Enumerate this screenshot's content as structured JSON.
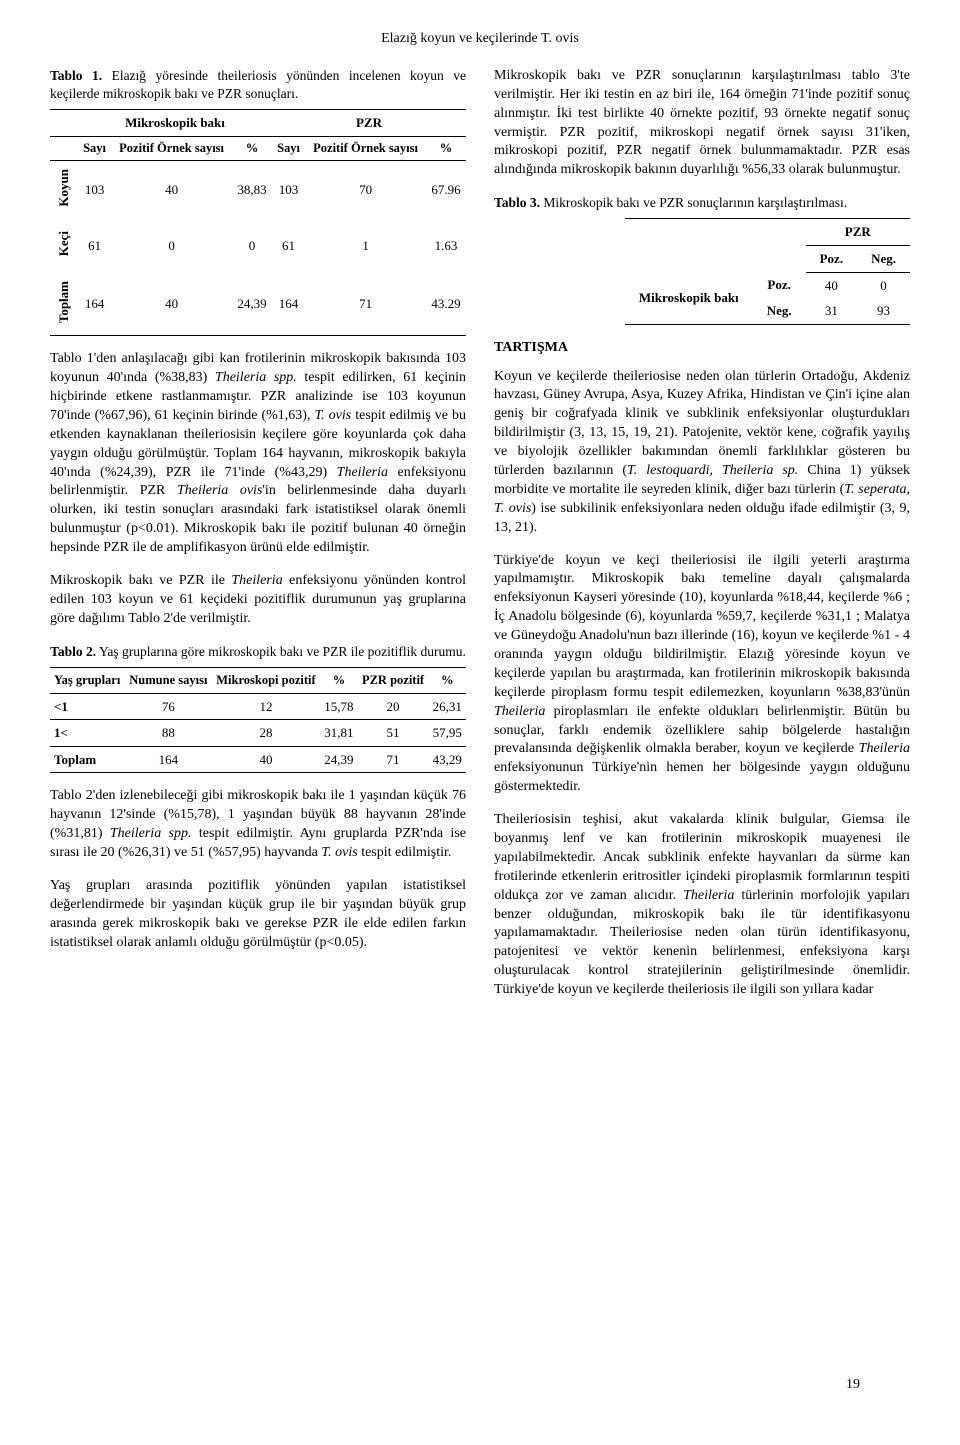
{
  "header": "Elazığ koyun ve keçilerinde T. ovis",
  "pageNumber": "19",
  "table1": {
    "captionLabel": "Tablo 1.",
    "caption": " Elazığ yöresinde theileriosis yönünden incelenen koyun ve keçilerde mikroskopik bakı ve PZR sonuçları.",
    "group1": "Mikroskopik bakı",
    "group2": "PZR",
    "sub_sayi": "Sayı",
    "sub_pozitif": "Pozitif Örnek sayısı",
    "sub_pct": "%",
    "rowLabels": {
      "koyun": "Koyun",
      "keci": "Keçi",
      "toplam": "Toplam"
    },
    "rows": [
      {
        "label": "koyun",
        "c": [
          "103",
          "40",
          "38,83",
          "103",
          "70",
          "67.96"
        ]
      },
      {
        "label": "keci",
        "c": [
          "61",
          "0",
          "0",
          "61",
          "1",
          "1.63"
        ]
      },
      {
        "label": "toplam",
        "c": [
          "164",
          "40",
          "24,39",
          "164",
          "71",
          "43.29"
        ]
      }
    ]
  },
  "leftParas": {
    "p1a": "Tablo 1'den anlaşılacağı gibi kan frotilerinin mikroskopik bakısında 103 koyunun 40'ında (%38,83) ",
    "p1b": "Theileria spp.",
    "p1c": " tespit edilirken, 61 keçinin hiçbirinde etkene rastlanmamıştır. PZR analizinde ise 103 koyunun 70'inde (%67,96), 61 keçinin birinde (%1,63), ",
    "p1d": "T. ovis",
    "p1e": " tespit edilmiş ve bu etkenden kaynaklanan theileriosisin keçilere göre koyunlarda çok daha yaygın olduğu görülmüştür. Toplam 164 hayvanın, mikroskopik bakıyla 40'ında (%24,39), PZR ile 71'inde (%43,29) ",
    "p1f": "Theileria",
    "p1g": " enfeksiyonu belirlenmiştir. PZR ",
    "p1h": "Theileria ovis",
    "p1i": "'in belirlenmesinde daha duyarlı olurken, iki testin sonuçları arasındaki fark istatistiksel olarak önemli bulunmuştur (p<0.01). Mikroskopik bakı ile pozitif bulunan 40 örneğin hepsinde PZR ile de amplifikasyon ürünü elde edilmiştir.",
    "p2a": "Mikroskopik bakı ve PZR ile ",
    "p2b": "Theileria",
    "p2c": " enfeksiyonu yönünden kontrol edilen 103 koyun ve 61 keçideki pozitiflik durumunun yaş gruplarına göre dağılımı Tablo 2'de verilmiştir."
  },
  "table2": {
    "captionLabel": "Tablo 2.",
    "caption": " Yaş gruplarına göre mikroskopik bakı ve PZR ile pozitiflik durumu.",
    "cols": [
      "Yaş grupları",
      "Numune sayısı",
      "Mikroskopi pozitif",
      "%",
      "PZR pozitif",
      "%"
    ],
    "rows": [
      [
        "<1",
        "76",
        "12",
        "15,78",
        "20",
        "26,31"
      ],
      [
        "1<",
        "88",
        "28",
        "31,81",
        "51",
        "57,95"
      ],
      [
        "Toplam",
        "164",
        "40",
        "24,39",
        "71",
        "43,29"
      ]
    ]
  },
  "leftAfterT2": {
    "p3a": "Tablo 2'den izlenebileceği gibi mikroskopik bakı ile 1 yaşından küçük 76 hayvanın 12'sinde (%15,78), 1 yaşından büyük 88 hayvanın 28'inde (%31,81) ",
    "p3b": "Theileria spp.",
    "p3c": " tespit edilmiştir. Aynı gruplarda PZR'nda ise sırası ile 20 (%26,31) ve 51 (%57,95) hayvanda ",
    "p3d": "T. ovis",
    "p3e": " tespit edilmiştir.",
    "p4": "Yaş grupları arasında pozitiflik yönünden yapılan istatistiksel değerlendirmede bir yaşından küçük grup ile bir yaşından büyük grup arasında gerek mikroskopik bakı ve gerekse PZR ile elde edilen farkın istatistiksel olarak anlamlı olduğu görülmüştür (p<0.05)."
  },
  "rightTop": {
    "p1": "Mikroskopik bakı ve PZR sonuçlarının karşılaştırılması tablo 3'te verilmiştir. Her iki testin en az biri ile, 164 örneğin 71'inde pozitif sonuç alınmıştır. İki test birlikte 40 örnekte pozitif, 93 örnekte negatif sonuç vermiştir. PZR pozitif, mikroskopi negatif örnek sayısı 31'iken, mikroskopi pozitif, PZR negatif örnek bulunmamaktadır. PZR esas alındığında mikroskopik bakının duyarlılığı %56,33 olarak bulunmuştur."
  },
  "table3": {
    "captionLabel": "Tablo 3.",
    "caption": " Mikroskopik bakı ve PZR sonuçlarının karşılaştırılması.",
    "pzr": "PZR",
    "poz": "Poz.",
    "neg": "Neg.",
    "rowLabel": "Mikroskopik bakı",
    "rowPozLabel": "Poz.",
    "rowNegLabel": "Neg.",
    "v11": "40",
    "v12": "0",
    "v21": "31",
    "v22": "93"
  },
  "rightSection": {
    "title": "TARTIŞMA",
    "p1a": "Koyun ve keçilerde theileriosise neden olan türlerin Ortadoğu, Akdeniz havzası, Güney Avrupa, Asya, Kuzey Afrika, Hindistan ve Çin'i içine alan geniş bir coğrafyada klinik ve subklinik enfeksiyonlar oluşturdukları bildirilmiştir (3, 13, 15, 19, 21). Patojenite, vektör kene, coğrafik yayılış ve biyolojik özellikler bakımından önemli farklılıklar gösteren bu türlerden bazılarının (",
    "p1b": "T. lestoquardi, Theileria sp.",
    "p1c": " China 1) yüksek morbidite ve mortalite ile seyreden klinik, diğer bazı türlerin (",
    "p1d": "T. seperata, T. ovis",
    "p1e": ") ise subkilinik enfeksiyonlara neden olduğu ifade edilmiştir (3, 9, 13, 21).",
    "p2a": "Türkiye'de koyun ve keçi theileriosisi ile ilgili yeterli araştırma yapılmamıştır. Mikroskopik bakı temeline dayalı çalışmalarda enfeksiyonun Kayseri yöresinde (10), koyunlarda %18,44, keçilerde %6 ; İç Anadolu bölgesinde (6), koyunlarda %59,7, keçilerde %31,1 ; Malatya ve Güneydoğu Anadolu'nun bazı illerinde (16), koyun ve keçilerde %1 - 4 oranında yaygın olduğu bildirilmiştir. Elazığ yöresinde koyun ve keçilerde yapılan bu araştırmada, kan frotilerinin mikroskopik bakısında keçilerde piroplasm formu tespit edilemezken, koyunların %38,83'ünün ",
    "p2b": "Theileria",
    "p2c": " piroplasmları ile enfekte oldukları belirlenmiştir. Bütün bu sonuçlar, farklı endemik özelliklere sahip bölgelerde hastalığın prevalansında değişkenlik olmakla beraber, koyun ve keçilerde ",
    "p2d": "Theileria",
    "p2e": " enfeksiyonunun Türkiye'nin hemen her bölgesinde yaygın olduğunu göstermektedir.",
    "p3a": "Theileriosisin teşhisi, akut vakalarda klinik bulgular, Giemsa ile boyanmış lenf ve kan frotilerinin mikroskopik muayenesi ile yapılabilmektedir. Ancak subklinik enfekte hayvanları da sürme kan frotilerinde etkenlerin eritrositler içindeki piroplasmik formlarının tespiti oldukça zor ve zaman alıcıdır. ",
    "p3b": "Theileria",
    "p3c": " türlerinin morfolojik yapıları benzer olduğundan, mikroskopik bakı ile tür identifikasyonu yapılamamaktadır. Theileriosise neden olan türün identifikasyonu, patojenitesi ve vektör kenenin belirlenmesi, enfeksiyona karşı oluşturulacak kontrol stratejilerinin geliştirilmesinde önemlidir. Türkiye'de koyun ve keçilerde theileriosis ile ilgili son yıllara kadar"
  }
}
